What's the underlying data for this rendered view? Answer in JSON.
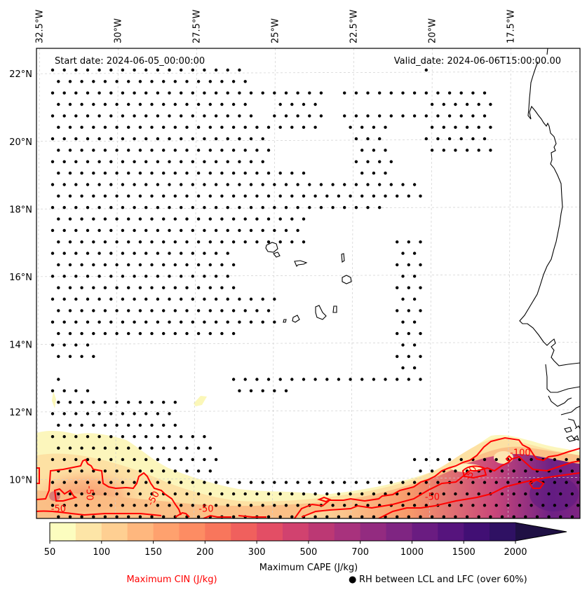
{
  "map": {
    "title_left": "Start date: 2024-06-05_00:00:00",
    "title_right": "Valid_date: 2024-06-06T15:00:00.00",
    "lon_ticks": [
      "32.5°W",
      "30°W",
      "27.5°W",
      "25°W",
      "22.5°W",
      "20°W",
      "17.5°W"
    ],
    "lon_values": [
      -32.5,
      -30,
      -27.5,
      -25,
      -22.5,
      -20,
      -17.5
    ],
    "lat_ticks": [
      "22°N",
      "20°N",
      "18°N",
      "16°N",
      "14°N",
      "12°N",
      "10°N"
    ],
    "lat_values": [
      22,
      20,
      18,
      16,
      14,
      12,
      10
    ],
    "extent": {
      "lon_min": -32.6,
      "lon_max": -15.3,
      "lat_min": 8.85,
      "lat_max": 22.75
    },
    "gridlines": true,
    "coastline_color": "#000000",
    "dot_color": "#000000",
    "cin_contour_color": "#ff0000",
    "cin_contour_labels": [
      {
        "text": "-50",
        "lon": -31.0,
        "lat": 9.6,
        "rotation": 90
      },
      {
        "text": "-50",
        "lon": -31.9,
        "lat": 9.05,
        "rotation": 0
      },
      {
        "text": "-50",
        "lon": -28.8,
        "lat": 9.4,
        "rotation": -60
      },
      {
        "text": "-50",
        "lon": -27.2,
        "lat": 9.05,
        "rotation": 0
      },
      {
        "text": "-50",
        "lon": -20.0,
        "lat": 9.4,
        "rotation": 0
      },
      {
        "text": "-50",
        "lon": -18.7,
        "lat": 10.15,
        "rotation": -60
      },
      {
        "text": "-100",
        "lon": -17.2,
        "lat": 10.7,
        "rotation": 0
      }
    ]
  },
  "colorbar": {
    "label": "Maximum CAPE (J/kg)",
    "levels": [
      50,
      75,
      100,
      125,
      150,
      175,
      200,
      250,
      300,
      400,
      500,
      600,
      700,
      850,
      1000,
      1250,
      1500,
      1750,
      2000
    ],
    "tick_labels": [
      "50",
      "100",
      "150",
      "200",
      "300",
      "500",
      "700",
      "1000",
      "1500",
      "2000"
    ],
    "tick_positions_index": [
      0,
      2,
      4,
      6,
      8,
      10,
      12,
      14,
      16,
      18
    ],
    "colors": [
      "#fcfdbf",
      "#fde5a7",
      "#fecf92",
      "#feb77e",
      "#fea16e",
      "#fd8c63",
      "#f8765c",
      "#f0605d",
      "#e34e65",
      "#d1426f",
      "#bc3874",
      "#a8327d",
      "#932b80",
      "#7f2582",
      "#6a1c81",
      "#56147d",
      "#410f74",
      "#2f1163",
      "#1f1044"
    ],
    "extend": "max"
  },
  "legend": {
    "cin_label": "Maximum CIN (J/kg)",
    "cin_color": "#ff0000",
    "rh_marker": "●",
    "rh_label": "RH between LCL and LFC (over 60%)"
  }
}
